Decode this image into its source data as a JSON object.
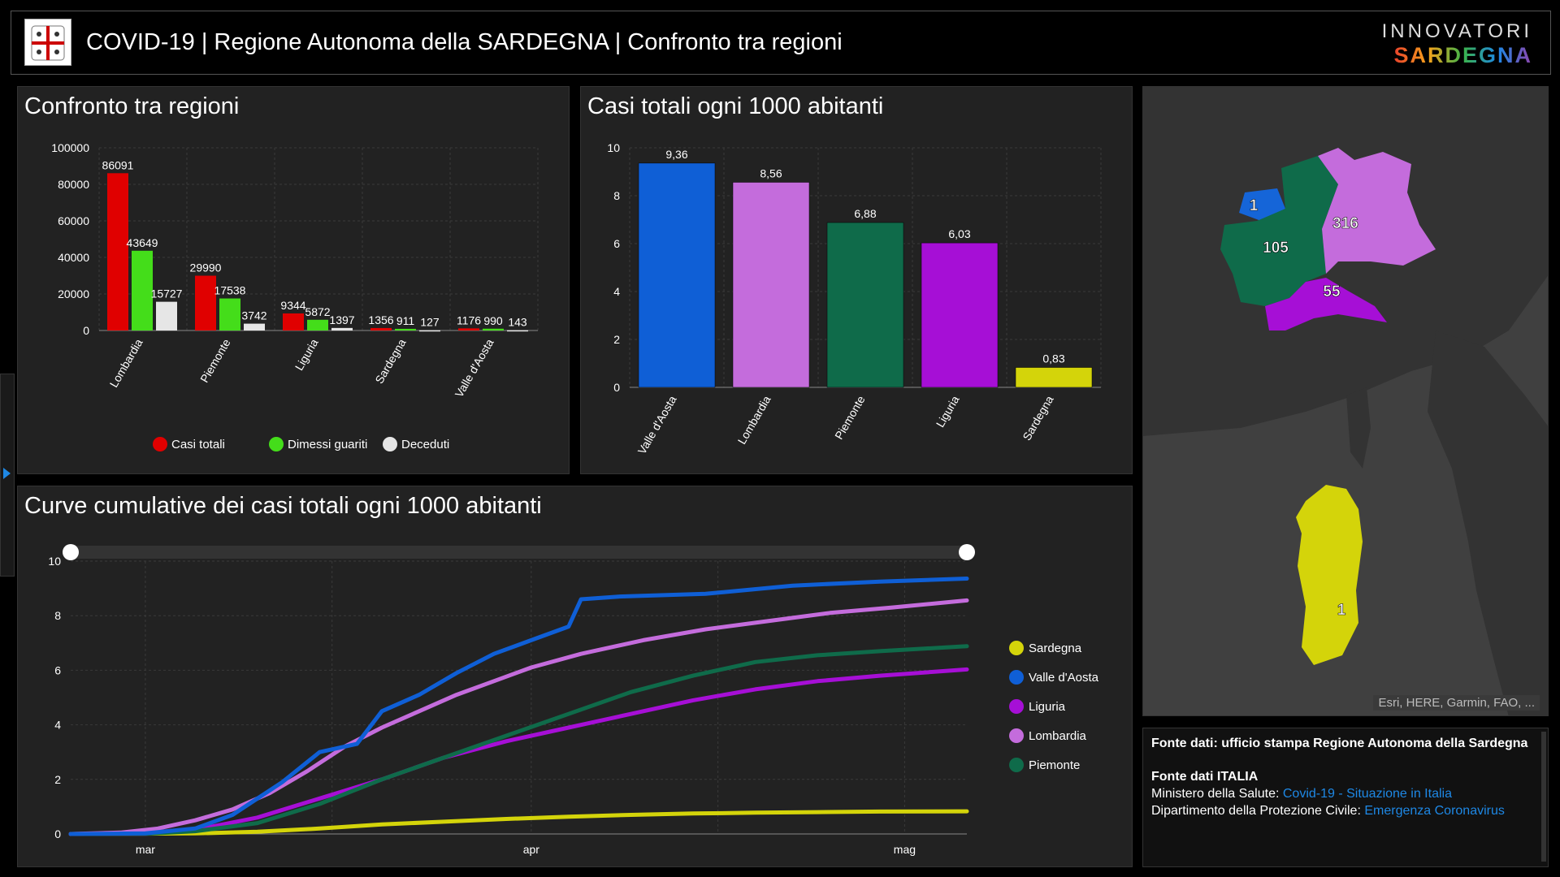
{
  "header": {
    "title": "COVID-19 | Regione Autonoma della SARDEGNA | Confronto tra regioni",
    "brand_top": "INNOVATORI",
    "brand_bottom": "SARDEGNA"
  },
  "colors": {
    "casi_totali": "#e00000",
    "dimessi_guariti": "#44dd1a",
    "deceduti": "#e6e6e6",
    "Valle d'Aosta": "#0f5fd6",
    "Lombardia": "#c46cdc",
    "Piemonte": "#0f6b4a",
    "Liguria": "#a60fd6",
    "Sardegna": "#d4d40a"
  },
  "chart_data": [
    {
      "type": "bar",
      "title": "Confronto tra regioni",
      "categories": [
        "Lombardia",
        "Piemonte",
        "Liguria",
        "Sardegna",
        "Valle d'Aosta"
      ],
      "series": [
        {
          "name": "Casi totali",
          "values": [
            86091,
            29990,
            9344,
            1356,
            1176
          ]
        },
        {
          "name": "Dimessi guariti",
          "values": [
            43649,
            17538,
            5872,
            911,
            990
          ]
        },
        {
          "name": "Deceduti",
          "values": [
            15727,
            3742,
            1397,
            127,
            143
          ]
        }
      ],
      "value_labels": [
        [
          "86091",
          "29990",
          "9344",
          "1356",
          "1176"
        ],
        [
          "43649",
          "17538",
          "5872",
          "911",
          "990"
        ],
        [
          "15727",
          "3742",
          "1397",
          "127",
          "143"
        ]
      ],
      "ylim": [
        0,
        100000
      ],
      "yticks": [
        "0",
        "20000",
        "40000",
        "60000",
        "80000",
        "100000"
      ],
      "legend_position": "bottom",
      "grid": true
    },
    {
      "type": "bar",
      "title": "Casi totali ogni 1000 abitanti",
      "categories": [
        "Valle d'Aosta",
        "Lombardia",
        "Piemonte",
        "Liguria",
        "Sardegna"
      ],
      "values": [
        9.36,
        8.56,
        6.88,
        6.03,
        0.83
      ],
      "value_labels": [
        "9,36",
        "8,56",
        "6,88",
        "6,03",
        "0,83"
      ],
      "ylim": [
        0,
        10
      ],
      "yticks": [
        "0",
        "2",
        "4",
        "6",
        "8",
        "10"
      ],
      "grid": true
    },
    {
      "type": "line",
      "title": "Curve cumulative dei casi totali ogni 1000 abitanti",
      "x_labels": [
        "mar",
        "apr",
        "mag"
      ],
      "x_label_dates": [
        "2020-03-01",
        "2020-04-01",
        "2020-05-01"
      ],
      "x_range": [
        "2020-02-24",
        "2020-05-06"
      ],
      "ylim": [
        0,
        10
      ],
      "yticks": [
        "0",
        "2",
        "4",
        "6",
        "8",
        "10"
      ],
      "legend_position": "right",
      "legend_order": [
        "Sardegna",
        "Valle d'Aosta",
        "Liguria",
        "Lombardia",
        "Piemonte"
      ],
      "series": [
        {
          "name": "Valle d'Aosta",
          "x": [
            "2020-02-24",
            "2020-03-01",
            "2020-03-05",
            "2020-03-08",
            "2020-03-12",
            "2020-03-15",
            "2020-03-18",
            "2020-03-20",
            "2020-03-23",
            "2020-03-26",
            "2020-03-29",
            "2020-04-01",
            "2020-04-04",
            "2020-04-05",
            "2020-04-08",
            "2020-04-15",
            "2020-04-22",
            "2020-04-29",
            "2020-05-06"
          ],
          "y": [
            0,
            0.02,
            0.2,
            0.7,
            1.9,
            3.0,
            3.3,
            4.5,
            5.1,
            5.9,
            6.6,
            7.1,
            7.6,
            8.6,
            8.7,
            8.8,
            9.1,
            9.25,
            9.36
          ]
        },
        {
          "name": "Lombardia",
          "x": [
            "2020-02-24",
            "2020-02-28",
            "2020-03-02",
            "2020-03-05",
            "2020-03-08",
            "2020-03-11",
            "2020-03-14",
            "2020-03-17",
            "2020-03-20",
            "2020-03-23",
            "2020-03-26",
            "2020-03-29",
            "2020-04-01",
            "2020-04-05",
            "2020-04-10",
            "2020-04-15",
            "2020-04-20",
            "2020-04-25",
            "2020-04-30",
            "2020-05-06"
          ],
          "y": [
            0,
            0.05,
            0.2,
            0.5,
            0.9,
            1.5,
            2.3,
            3.2,
            3.9,
            4.5,
            5.1,
            5.6,
            6.1,
            6.6,
            7.1,
            7.5,
            7.8,
            8.1,
            8.3,
            8.56
          ]
        },
        {
          "name": "Piemonte",
          "x": [
            "2020-02-24",
            "2020-03-01",
            "2020-03-05",
            "2020-03-10",
            "2020-03-15",
            "2020-03-20",
            "2020-03-25",
            "2020-03-30",
            "2020-04-04",
            "2020-04-09",
            "2020-04-14",
            "2020-04-19",
            "2020-04-24",
            "2020-04-29",
            "2020-05-06"
          ],
          "y": [
            0,
            0.01,
            0.1,
            0.4,
            1.1,
            2.0,
            2.8,
            3.6,
            4.4,
            5.2,
            5.8,
            6.3,
            6.55,
            6.7,
            6.88
          ]
        },
        {
          "name": "Liguria",
          "x": [
            "2020-02-24",
            "2020-03-01",
            "2020-03-05",
            "2020-03-10",
            "2020-03-15",
            "2020-03-20",
            "2020-03-25",
            "2020-03-30",
            "2020-04-04",
            "2020-04-09",
            "2020-04-14",
            "2020-04-19",
            "2020-04-24",
            "2020-04-29",
            "2020-05-06"
          ],
          "y": [
            0,
            0.01,
            0.15,
            0.6,
            1.3,
            2.0,
            2.8,
            3.4,
            3.9,
            4.4,
            4.9,
            5.3,
            5.6,
            5.8,
            6.03
          ]
        },
        {
          "name": "Sardegna",
          "x": [
            "2020-02-24",
            "2020-03-05",
            "2020-03-10",
            "2020-03-15",
            "2020-03-20",
            "2020-03-25",
            "2020-03-30",
            "2020-04-04",
            "2020-04-09",
            "2020-04-14",
            "2020-04-19",
            "2020-04-24",
            "2020-04-29",
            "2020-05-06"
          ],
          "y": [
            0,
            0.02,
            0.08,
            0.2,
            0.35,
            0.45,
            0.55,
            0.63,
            0.7,
            0.75,
            0.78,
            0.8,
            0.82,
            0.83
          ]
        }
      ]
    }
  ],
  "map": {
    "labels": [
      {
        "region": "Valle d'Aosta",
        "text": "1"
      },
      {
        "region": "Lombardia",
        "text": "316"
      },
      {
        "region": "Piemonte",
        "text": "105"
      },
      {
        "region": "Liguria",
        "text": "55"
      },
      {
        "region": "Sardegna",
        "text": "1"
      }
    ],
    "attribution": "Esri, HERE, Garmin, FAO, ..."
  },
  "info": {
    "fonte_regione": "Fonte dati: ufficio stampa Regione Autonoma della Sardegna",
    "fonte_italia_title": "Fonte dati ITALIA",
    "ministero_prefix": "Ministero della Salute: ",
    "ministero_link": "Covid-19 - Situazione in Italia",
    "protezione_prefix": "Dipartimento della Protezione Civile: ",
    "protezione_link": "Emergenza Coronavirus"
  }
}
